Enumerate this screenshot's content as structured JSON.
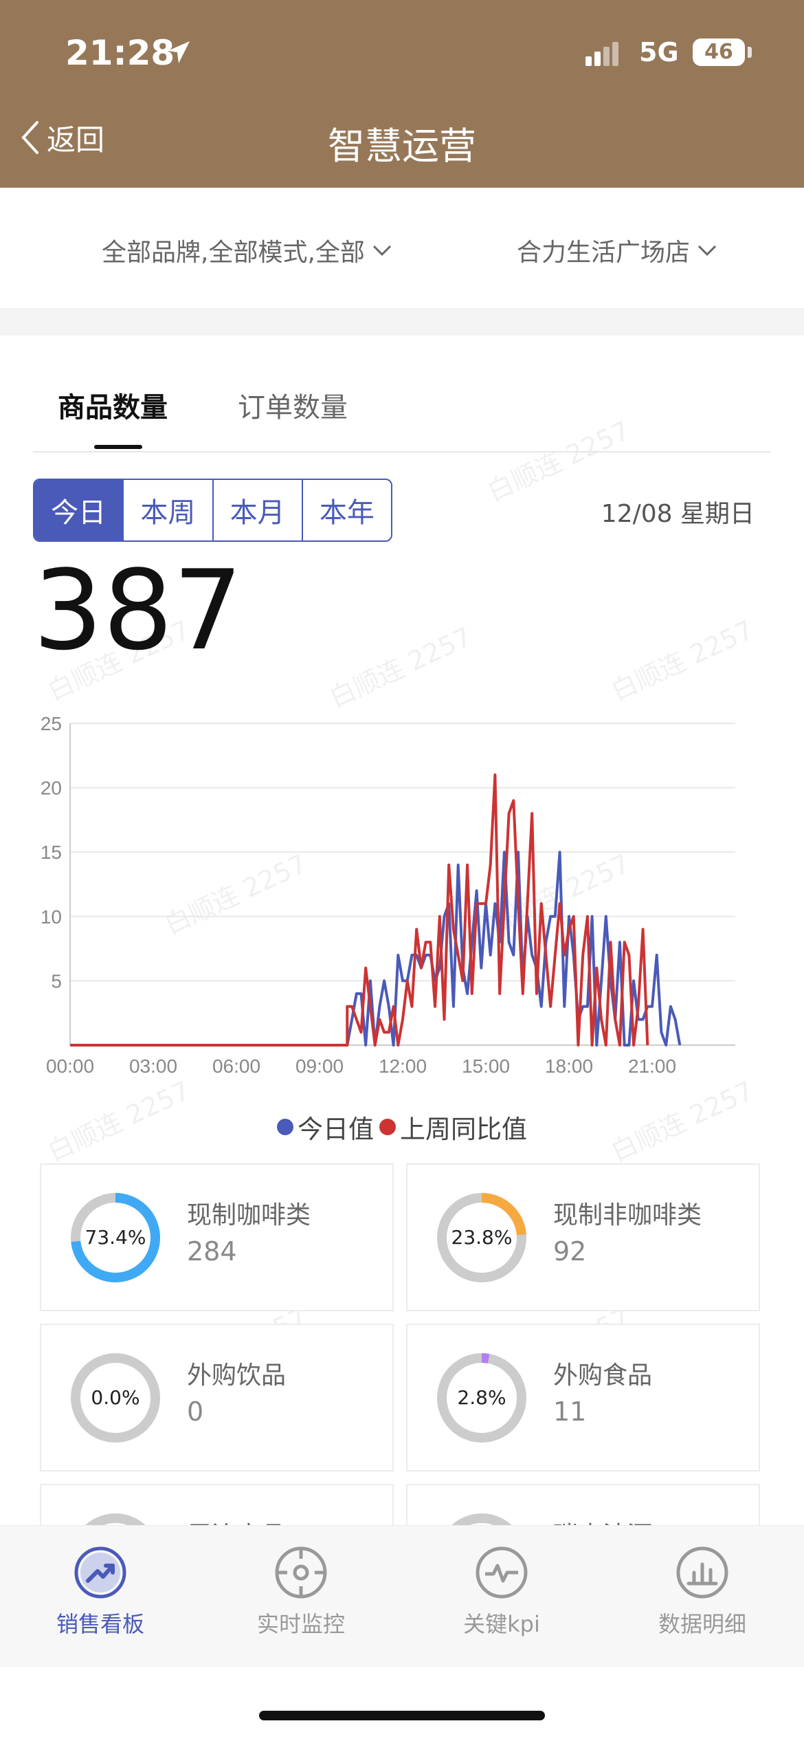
{
  "status_bar": {
    "time": "21:28",
    "network": "5G",
    "battery": "46"
  },
  "nav": {
    "back_label": "返回",
    "title": "智慧运营"
  },
  "filters": {
    "brand_filter": "全部品牌,全部模式,全部",
    "store_filter": "合力生活广场店"
  },
  "tabs": [
    {
      "label": "商品数量"
    },
    {
      "label": "订单数量"
    }
  ],
  "period": {
    "options": [
      "今日",
      "本周",
      "本月",
      "本年"
    ],
    "selected": "今日"
  },
  "date": "12/08 星期日",
  "total": "387",
  "watermark": "白顺连 2257",
  "chart_data": {
    "type": "line",
    "x_ticks": [
      "00:00",
      "03:00",
      "06:00",
      "09:00",
      "12:00",
      "15:00",
      "18:00",
      "21:00"
    ],
    "xlim": [
      "00:00",
      "24:00"
    ],
    "interval_minutes": 10,
    "y_ticks": [
      5,
      10,
      15,
      20,
      25
    ],
    "ylim": [
      0,
      25
    ],
    "grid": true,
    "legend_position": "bottom",
    "series": [
      {
        "name": "今日值",
        "color": "#4a5ab8",
        "start": "10:00",
        "values": [
          0,
          2,
          4,
          4,
          0,
          5,
          0,
          3,
          5,
          3,
          0,
          7,
          5,
          5,
          7,
          7,
          6,
          7,
          7,
          5,
          6,
          10,
          11,
          3,
          14,
          6,
          4,
          8,
          12,
          6,
          11,
          7,
          11,
          8,
          15,
          8,
          7,
          15,
          5,
          10,
          7,
          6,
          3,
          8,
          10,
          10,
          15,
          3,
          10,
          7,
          2,
          3,
          3,
          10,
          0,
          5,
          10,
          5,
          2,
          8,
          0,
          0,
          5,
          2,
          2,
          3,
          3,
          7,
          1,
          0,
          3,
          2,
          0
        ]
      },
      {
        "name": "上周同比值",
        "color": "#cc3333",
        "start": "10:00",
        "values": [
          3,
          3,
          2,
          1,
          6,
          3,
          0,
          2,
          1,
          1,
          3,
          0,
          2,
          5,
          3,
          9,
          6,
          8,
          8,
          3,
          10,
          2,
          14,
          9,
          7,
          5,
          14,
          4,
          11,
          11,
          11,
          14,
          21,
          4,
          11,
          18,
          19,
          11,
          4,
          11,
          18,
          4,
          11,
          7,
          3,
          7,
          11,
          7,
          9,
          10,
          0,
          7,
          10,
          0,
          6,
          2,
          0,
          8,
          2,
          0,
          8,
          7,
          0,
          3,
          9,
          0
        ]
      }
    ]
  },
  "categories": [
    {
      "name": "现制咖啡类",
      "value": "284",
      "percent": "73.4%",
      "fraction": 0.734,
      "color": "#3fa9f5"
    },
    {
      "name": "现制非咖啡类",
      "value": "92",
      "percent": "23.8%",
      "fraction": 0.238,
      "color": "#f5a93f"
    },
    {
      "name": "外购饮品",
      "value": "0",
      "percent": "0.0%",
      "fraction": 0.0,
      "color": "#cccccc"
    },
    {
      "name": "外购食品",
      "value": "11",
      "percent": "2.8%",
      "fraction": 0.028,
      "color": "#b37ff0"
    },
    {
      "name": "周边商品",
      "value": "",
      "percent": "",
      "fraction": 0,
      "color": "#cccccc"
    },
    {
      "name": "瑞幸沽酒",
      "value": "",
      "percent": "",
      "fraction": 0,
      "color": "#cccccc"
    }
  ],
  "bottom_tabs": [
    {
      "label": "销售看板",
      "icon": "trend-up-icon",
      "active": true
    },
    {
      "label": "实时监控",
      "icon": "target-icon",
      "active": false
    },
    {
      "label": "关键kpi",
      "icon": "pulse-icon",
      "active": false
    },
    {
      "label": "数据明细",
      "icon": "bar-chart-icon",
      "active": false
    }
  ]
}
